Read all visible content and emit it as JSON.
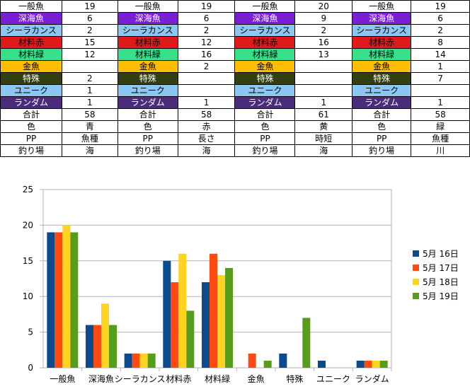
{
  "table": {
    "columns": [
      {
        "labels": [
          "一般魚",
          "深海魚",
          "シーラカンス",
          "材料赤",
          "材料緑",
          "金魚",
          "特殊",
          "ユニーク",
          "ランダム",
          "合計",
          "色",
          "PP",
          "釣り場"
        ],
        "values": [
          "19",
          "6",
          "2",
          "15",
          "12",
          "",
          "2",
          "1",
          "1",
          "58",
          "青",
          "魚種",
          "海"
        ]
      },
      {
        "labels": [
          "一般魚",
          "深海魚",
          "シーラカンス",
          "材料赤",
          "材料緑",
          "金魚",
          "特殊",
          "ユニーク",
          "ランダム",
          "合計",
          "色",
          "PP",
          "釣り場"
        ],
        "values": [
          "19",
          "6",
          "2",
          "12",
          "16",
          "2",
          "",
          "",
          "1",
          "58",
          "赤",
          "長さ",
          "海"
        ]
      },
      {
        "labels": [
          "一般魚",
          "深海魚",
          "シーラカンス",
          "材料赤",
          "材料緑",
          "金魚",
          "特殊",
          "ユニーク",
          "ランダム",
          "合計",
          "色",
          "PP",
          "釣り場"
        ],
        "values": [
          "20",
          "9",
          "2",
          "16",
          "13",
          "",
          "",
          "",
          "1",
          "61",
          "黄",
          "時短",
          "海"
        ]
      },
      {
        "labels": [
          "一般魚",
          "深海魚",
          "シーラカンス",
          "材料赤",
          "材料緑",
          "金魚",
          "特殊",
          "ユニーク",
          "ランダム",
          "合計",
          "色",
          "PP",
          "釣り場"
        ],
        "values": [
          "19",
          "6",
          "2",
          "8",
          "14",
          "1",
          "7",
          "",
          "1",
          "58",
          "緑",
          "魚種",
          "川"
        ]
      }
    ],
    "label_colors": [
      "#ffffff",
      "#7a1fd6",
      "#8cc7f2",
      "#e01a1a",
      "#38e08a",
      "#ffbf00",
      "#333f10",
      "#8cc7f2",
      "#4b2c7a",
      "#ffffff",
      "#ffffff",
      "#ffffff",
      "#ffffff"
    ]
  },
  "chart_data": {
    "type": "bar",
    "categories": [
      "一般魚",
      "深海魚",
      "シーラカンス",
      "材料赤",
      "材料緑",
      "金魚",
      "特殊",
      "ユニーク",
      "ランダム"
    ],
    "series": [
      {
        "name": "5月 16日",
        "color": "#0b4a8b",
        "values": [
          19,
          6,
          2,
          15,
          12,
          0,
          2,
          1,
          1
        ]
      },
      {
        "name": "5月 17日",
        "color": "#ff4a12",
        "values": [
          19,
          6,
          2,
          12,
          16,
          2,
          0,
          0,
          1
        ]
      },
      {
        "name": "5月 18日",
        "color": "#ffd320",
        "values": [
          20,
          9,
          2,
          16,
          13,
          0,
          0,
          0,
          1
        ]
      },
      {
        "name": "5月 19日",
        "color": "#579d1c",
        "values": [
          19,
          6,
          2,
          8,
          14,
          1,
          7,
          0,
          1
        ]
      }
    ],
    "yticks": [
      "0",
      "5",
      "10",
      "15",
      "20",
      "25"
    ],
    "ylim": [
      0,
      25
    ],
    "grid": true,
    "legend": "right"
  }
}
